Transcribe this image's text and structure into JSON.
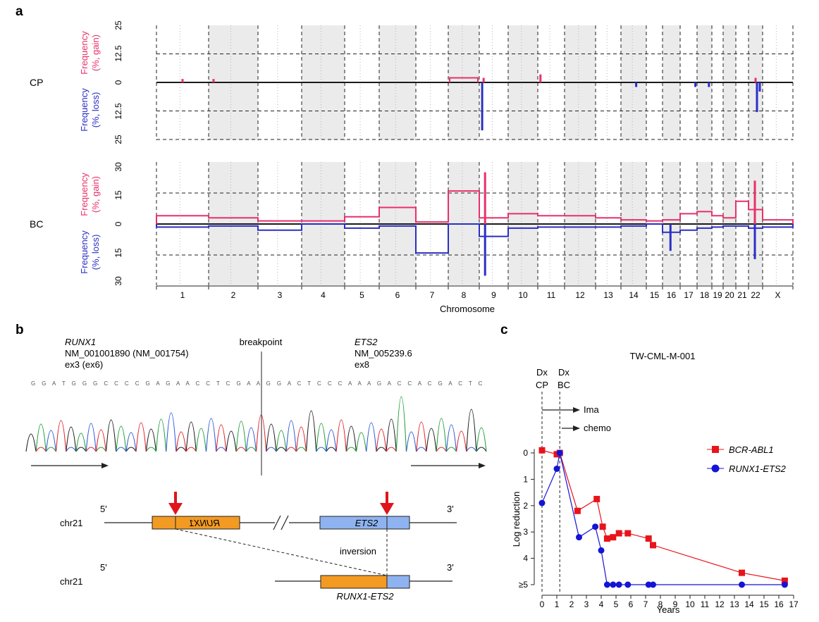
{
  "panel_a": {
    "letter": "a",
    "xlabel": "Chromosome",
    "chromosomes": [
      "1",
      "2",
      "3",
      "4",
      "5",
      "6",
      "7",
      "8",
      "9",
      "10",
      "11",
      "12",
      "13",
      "14",
      "15",
      "16",
      "17",
      "18",
      "19",
      "20",
      "21",
      "22",
      "X"
    ],
    "rows": {
      "CP": {
        "label": "CP",
        "gain_label_line1": "Frequency",
        "gain_label_line2": "(%, gain)",
        "loss_label_line1": "Frequency",
        "loss_label_line2": "(%, loss)",
        "ticks": [
          "25",
          "12.5",
          "0",
          "12.5",
          "25"
        ]
      },
      "BC": {
        "label": "BC",
        "gain_label_line1": "Frequency",
        "gain_label_line2": "(%, gain)",
        "loss_label_line1": "Frequency",
        "loss_label_line2": "(%, loss)",
        "ticks": [
          "30",
          "15",
          "0",
          "15",
          "30"
        ]
      }
    }
  },
  "panel_b": {
    "letter": "b",
    "gene1": "RUNX1",
    "gene1_tx": "NM_001001890 (NM_001754)",
    "gene1_exon": "ex3 (ex6)",
    "breakpoint": "breakpoint",
    "gene2": "ETS2",
    "gene2_tx": "NM_005239.6",
    "gene2_exon": "ex8",
    "base_calls": "G G A T G G G C C C C G A G A A C C T C G A A G G A C T C C C A A A G A C C A C G A C T C",
    "chr_label_top": "chr21",
    "chr_label_bottom": "chr21",
    "five_prime": "5'",
    "three_prime": "3'",
    "runx1_box_label": "RUNX1",
    "ets2_box_label": "ETS2",
    "inversion": "inversion",
    "fusion_label": "RUNX1-ETS2"
  },
  "panel_c": {
    "letter": "c",
    "title": "TW-CML-M-001",
    "dx_cp_line1": "Dx",
    "dx_cp_line2": "CP",
    "dx_bc_line1": "Dx",
    "dx_bc_line2": "BC",
    "therapy_1": "Ima",
    "therapy_2": "chemo",
    "xlabel": "Years",
    "ylabel": "Log reduction",
    "ytick_labels": [
      "0",
      "1",
      "2",
      "3",
      "4",
      "≥5"
    ],
    "legend_1": "BCR-ABL1",
    "legend_2": "RUNX1-ETS2"
  },
  "colors": {
    "gain": "#e8306a",
    "loss": "#2b2fc4",
    "bcr": "#e8141b",
    "runx": "#1414d6",
    "runx1_box": "#f39a23",
    "ets2_box": "#8fb3f0",
    "arrow": "#e0141b",
    "shade": "#ebebeb"
  },
  "chart_data": [
    {
      "type": "area",
      "title": "CP",
      "xlabel": "Chromosome",
      "ylabel": "Frequency (%, gain) / Frequency (%, loss)",
      "categories": [
        "1",
        "2",
        "3",
        "4",
        "5",
        "6",
        "7",
        "8",
        "9",
        "10",
        "11",
        "12",
        "13",
        "14",
        "15",
        "16",
        "17",
        "18",
        "19",
        "20",
        "21",
        "22",
        "X"
      ],
      "ylim": [
        -25,
        25
      ],
      "series": [
        {
          "name": "gain",
          "segments": [
            {
              "chrom": "1",
              "pos": 0.5,
              "value": 1.5
            },
            {
              "chrom": "2",
              "pos": 0.1,
              "value": 1.5
            },
            {
              "chrom": "8",
              "pos_start": 0.0,
              "pos_end": 1.0,
              "value": 2.0
            },
            {
              "chrom": "9",
              "pos": 0.15,
              "value": 2.0
            },
            {
              "chrom": "11",
              "pos": 0.1,
              "value": 3.5
            },
            {
              "chrom": "22",
              "pos": 0.5,
              "value": 2.0
            }
          ]
        },
        {
          "name": "loss",
          "segments": [
            {
              "chrom": "9",
              "pos": 0.1,
              "value": -21
            },
            {
              "chrom": "14",
              "pos": 0.6,
              "value": -2
            },
            {
              "chrom": "17",
              "pos": 0.9,
              "value": -2
            },
            {
              "chrom": "18",
              "pos": 0.8,
              "value": -2
            },
            {
              "chrom": "22",
              "pos": 0.6,
              "value": -13
            },
            {
              "chrom": "22",
              "pos": 0.8,
              "value": -4
            }
          ]
        }
      ]
    },
    {
      "type": "area",
      "title": "BC",
      "xlabel": "Chromosome",
      "ylabel": "Frequency (%, gain) / Frequency (%, loss)",
      "categories": [
        "1",
        "2",
        "3",
        "4",
        "5",
        "6",
        "7",
        "8",
        "9",
        "10",
        "11",
        "12",
        "13",
        "14",
        "15",
        "16",
        "17",
        "18",
        "19",
        "20",
        "21",
        "22",
        "X"
      ],
      "ylim": [
        -30,
        30
      ],
      "series": [
        {
          "name": "gain",
          "levels": [
            {
              "chrom": "1",
              "value": 4
            },
            {
              "chrom": "2",
              "value": 3
            },
            {
              "chrom": "3",
              "value": 1.5
            },
            {
              "chrom": "4",
              "value": 1.5
            },
            {
              "chrom": "5",
              "value": 3.5
            },
            {
              "chrom": "6",
              "value": 8
            },
            {
              "chrom": "7",
              "value": 1
            },
            {
              "chrom": "8",
              "value": 16
            },
            {
              "chrom": "9",
              "value": 3,
              "peak": 25
            },
            {
              "chrom": "10",
              "value": 5
            },
            {
              "chrom": "11",
              "value": 4
            },
            {
              "chrom": "12",
              "value": 4
            },
            {
              "chrom": "13",
              "value": 3
            },
            {
              "chrom": "14",
              "value": 2
            },
            {
              "chrom": "15",
              "value": 1.5
            },
            {
              "chrom": "16",
              "value": 2
            },
            {
              "chrom": "17",
              "value": 5
            },
            {
              "chrom": "18",
              "value": 6
            },
            {
              "chrom": "19",
              "value": 4
            },
            {
              "chrom": "20",
              "value": 3
            },
            {
              "chrom": "21",
              "value": 11
            },
            {
              "chrom": "22",
              "value": 7,
              "peak": 21
            },
            {
              "chrom": "X",
              "value": 2
            }
          ]
        },
        {
          "name": "loss",
          "levels": [
            {
              "chrom": "1",
              "value": -1.5
            },
            {
              "chrom": "2",
              "value": -1
            },
            {
              "chrom": "3",
              "value": -3
            },
            {
              "chrom": "4",
              "value": 0
            },
            {
              "chrom": "5",
              "value": -2
            },
            {
              "chrom": "6",
              "value": -1
            },
            {
              "chrom": "7",
              "value": -14
            },
            {
              "chrom": "8",
              "value": 0
            },
            {
              "chrom": "9",
              "value": -6,
              "peak": -25
            },
            {
              "chrom": "10",
              "value": -2
            },
            {
              "chrom": "11",
              "value": -1.5
            },
            {
              "chrom": "12",
              "value": -1.5
            },
            {
              "chrom": "13",
              "value": -1.5
            },
            {
              "chrom": "14",
              "value": -1
            },
            {
              "chrom": "15",
              "value": 0
            },
            {
              "chrom": "16",
              "value": -4,
              "peak": -13
            },
            {
              "chrom": "17",
              "value": -3
            },
            {
              "chrom": "18",
              "value": -2
            },
            {
              "chrom": "19",
              "value": -1.5
            },
            {
              "chrom": "20",
              "value": -1
            },
            {
              "chrom": "21",
              "value": -1
            },
            {
              "chrom": "22",
              "value": -2,
              "peak": -17
            },
            {
              "chrom": "X",
              "value": -1.5
            }
          ]
        }
      ]
    },
    {
      "type": "line",
      "title": "TW-CML-M-001",
      "xlabel": "Years",
      "ylabel": "Log reduction",
      "xlim": [
        0,
        17
      ],
      "ylim": [
        0,
        5
      ],
      "y_inverted": true,
      "xticks": [
        0,
        1,
        2,
        3,
        4,
        5,
        6,
        7,
        8,
        9,
        10,
        11,
        12,
        13,
        14,
        15,
        16,
        17
      ],
      "yticks": [
        "0",
        "1",
        "2",
        "3",
        "4",
        "≥5"
      ],
      "legend_position": "right",
      "series": [
        {
          "name": "BCR-ABL1",
          "marker": "square",
          "color": "#e8141b",
          "x": [
            0,
            1,
            1.2,
            2.4,
            3.7,
            4.1,
            4.4,
            4.8,
            5.2,
            5.8,
            7.2,
            7.5,
            13.5,
            16.4
          ],
          "y": [
            -0.1,
            0.05,
            0,
            2.2,
            1.75,
            2.8,
            3.25,
            3.2,
            3.05,
            3.05,
            3.25,
            3.5,
            4.55,
            4.85
          ]
        },
        {
          "name": "RUNX1-ETS2",
          "marker": "circle",
          "color": "#1414d6",
          "x": [
            0,
            1,
            1.2,
            2.5,
            3.6,
            4.0,
            4.4,
            4.8,
            5.2,
            5.8,
            7.2,
            7.5,
            13.5,
            16.4
          ],
          "y": [
            1.9,
            0.6,
            0,
            3.2,
            2.8,
            3.7,
            5,
            5,
            5,
            5,
            5,
            5,
            5,
            5
          ]
        }
      ],
      "events": [
        {
          "x": 0,
          "label": "Dx CP"
        },
        {
          "x": 1.2,
          "label": "Dx BC"
        },
        {
          "x_start": 0,
          "label": "Ima"
        },
        {
          "x_start": 1.2,
          "label": "chemo"
        }
      ]
    }
  ]
}
